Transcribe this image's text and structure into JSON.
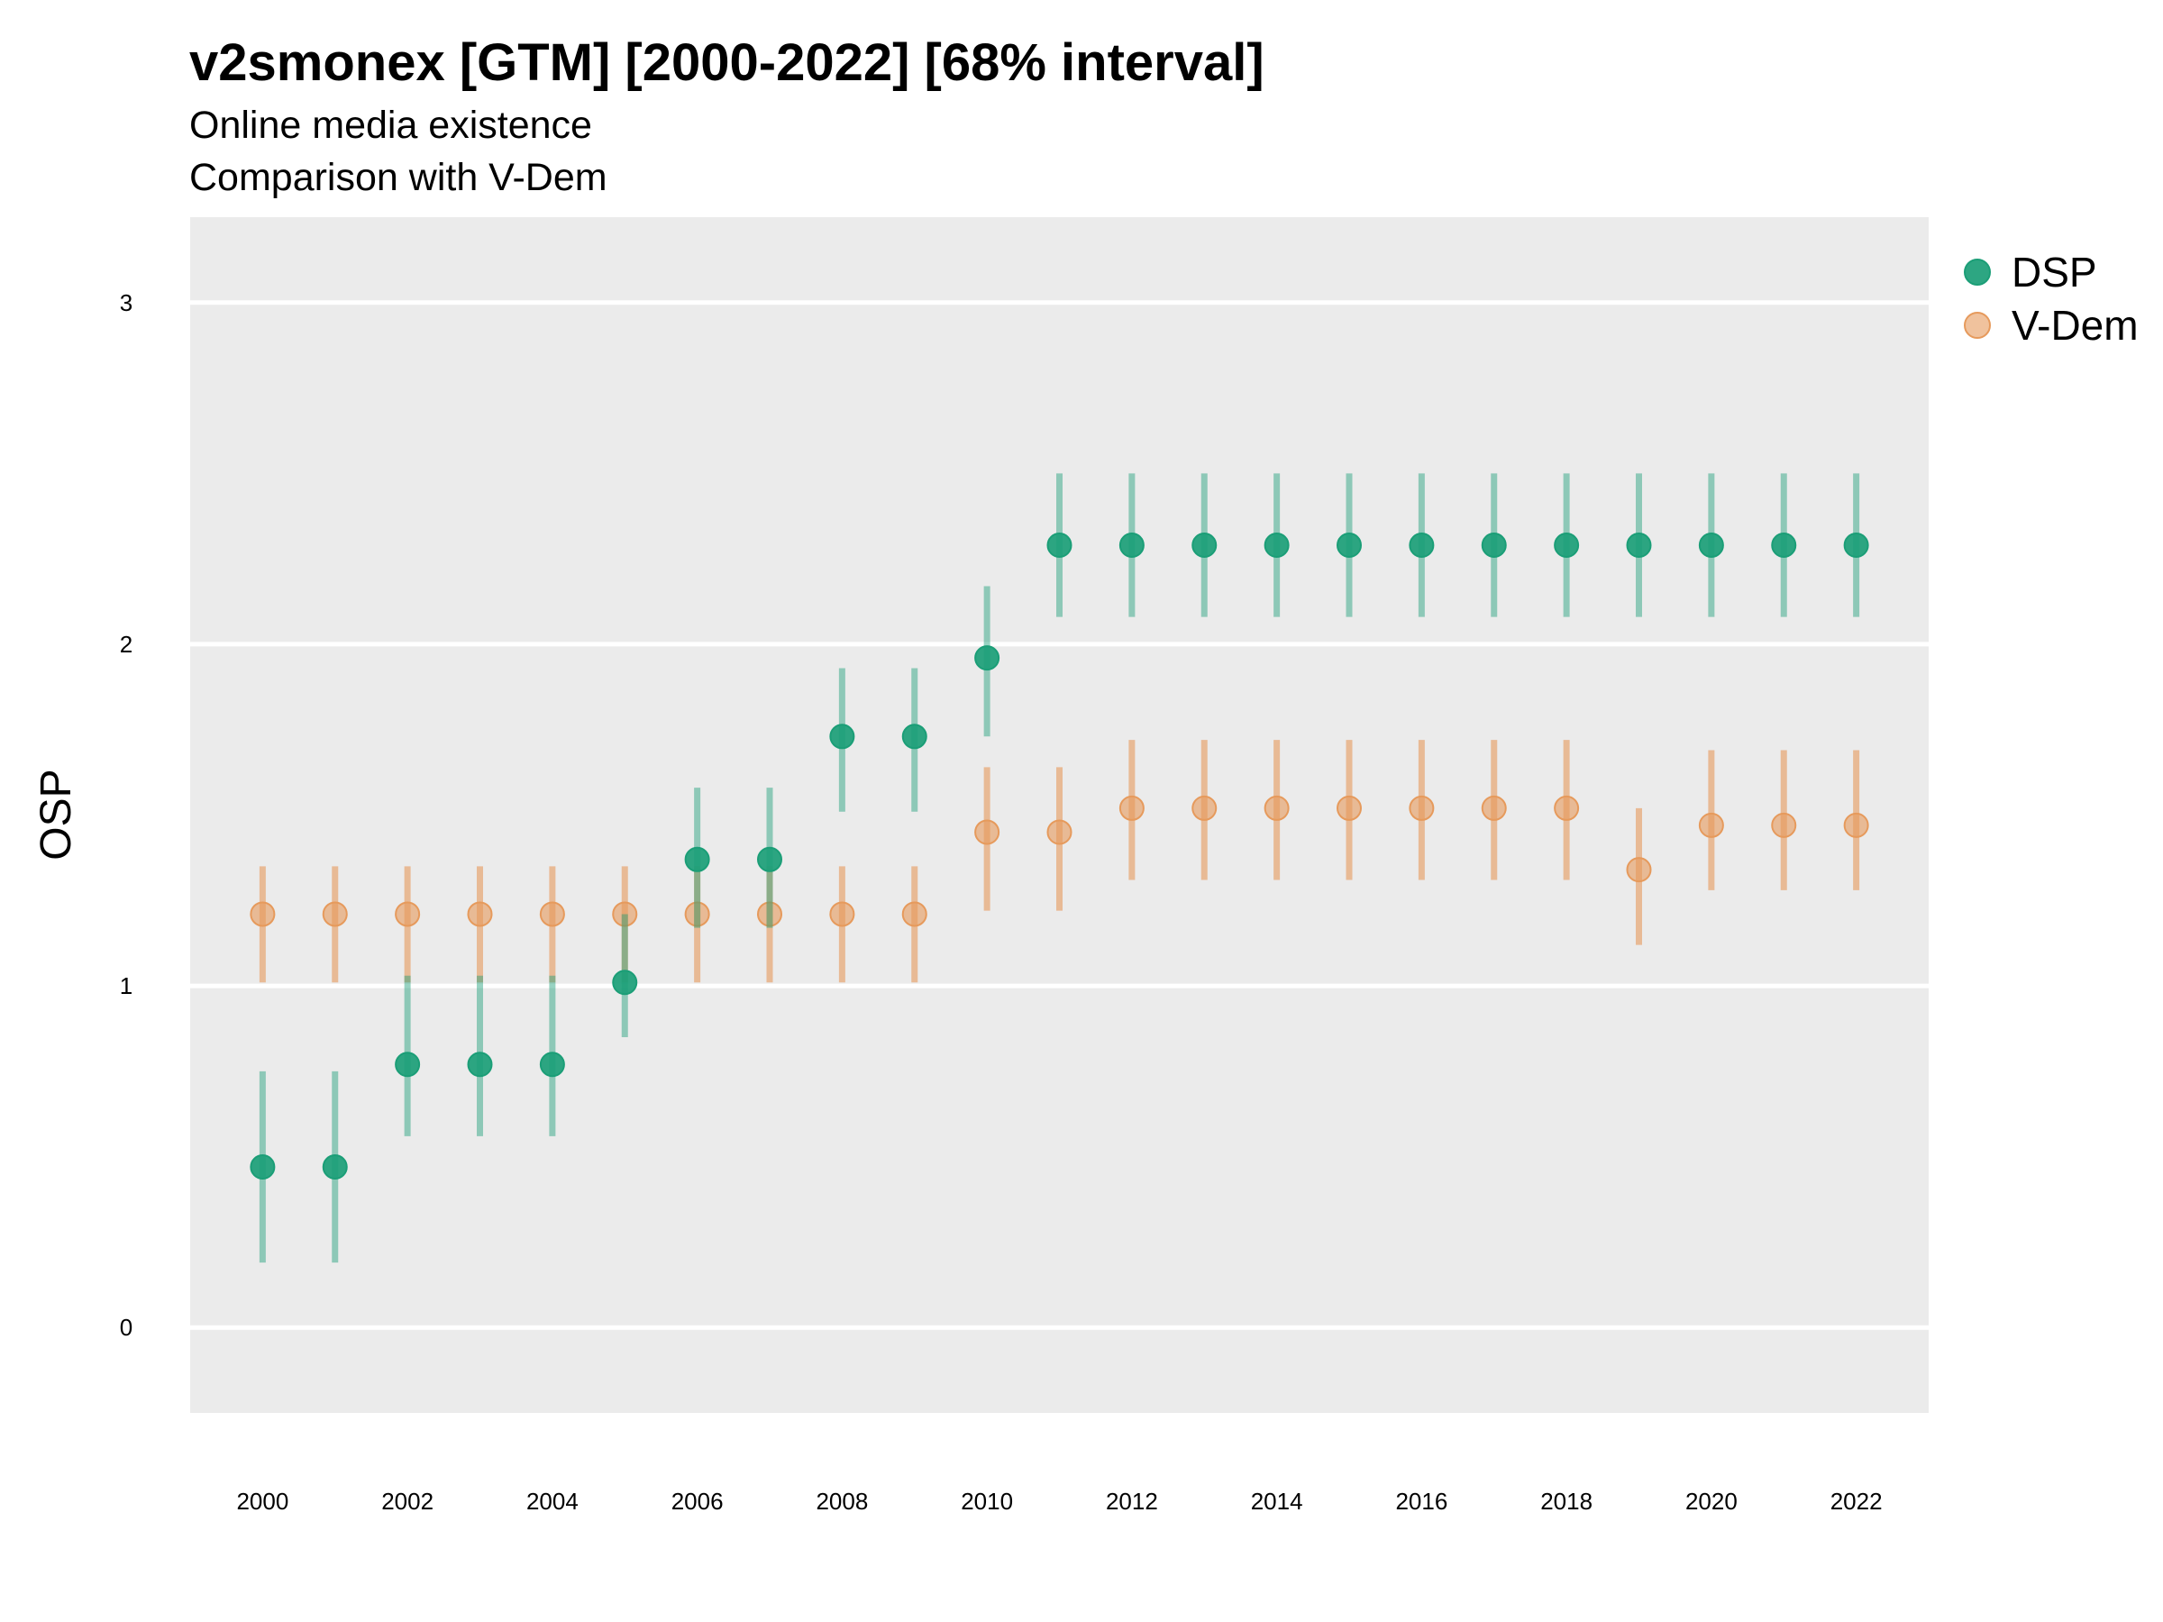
{
  "title": "v2smonex [GTM] [2000-2022] [68% interval]",
  "subtitle": "Online media existence",
  "caption": "Comparison with V-Dem",
  "chart_data": {
    "type": "scatter",
    "ylabel": "OSP",
    "xlabel": "",
    "ylim": [
      -0.25,
      3.25
    ],
    "xlim": [
      1999.0,
      2023.0
    ],
    "x_ticks": [
      2000,
      2002,
      2004,
      2006,
      2008,
      2010,
      2012,
      2014,
      2016,
      2018,
      2020,
      2022
    ],
    "y_ticks": [
      0,
      1,
      2,
      3
    ],
    "grid": true,
    "legend_position": "right",
    "x": [
      2000,
      2001,
      2002,
      2003,
      2004,
      2005,
      2006,
      2007,
      2008,
      2009,
      2010,
      2011,
      2012,
      2013,
      2014,
      2015,
      2016,
      2017,
      2018,
      2019,
      2020,
      2021,
      2022
    ],
    "series": [
      {
        "name": "DSP",
        "color": "#1b9e77",
        "values": [
          0.47,
          0.47,
          0.77,
          0.77,
          0.77,
          1.01,
          1.37,
          1.37,
          1.73,
          1.73,
          1.96,
          2.29,
          2.29,
          2.29,
          2.29,
          2.29,
          2.29,
          2.29,
          2.29,
          2.29,
          2.29,
          2.29,
          2.29
        ],
        "lower": [
          0.19,
          0.19,
          0.56,
          0.56,
          0.56,
          0.85,
          1.17,
          1.17,
          1.51,
          1.51,
          1.73,
          2.08,
          2.08,
          2.08,
          2.08,
          2.08,
          2.08,
          2.08,
          2.08,
          2.08,
          2.08,
          2.08,
          2.08
        ],
        "upper": [
          0.75,
          0.75,
          1.03,
          1.03,
          1.03,
          1.21,
          1.58,
          1.58,
          1.93,
          1.93,
          2.17,
          2.5,
          2.5,
          2.5,
          2.5,
          2.5,
          2.5,
          2.5,
          2.5,
          2.5,
          2.5,
          2.5,
          2.5
        ]
      },
      {
        "name": "V-Dem",
        "color": "#e69a5c",
        "values": [
          1.21,
          1.21,
          1.21,
          1.21,
          1.21,
          1.21,
          1.21,
          1.21,
          1.21,
          1.21,
          1.45,
          1.45,
          1.52,
          1.52,
          1.52,
          1.52,
          1.52,
          1.52,
          1.52,
          1.34,
          1.47,
          1.47,
          1.47
        ],
        "lower": [
          1.01,
          1.01,
          1.01,
          1.01,
          1.01,
          1.01,
          1.01,
          1.01,
          1.01,
          1.01,
          1.22,
          1.22,
          1.31,
          1.31,
          1.31,
          1.31,
          1.31,
          1.31,
          1.31,
          1.12,
          1.28,
          1.28,
          1.28
        ],
        "upper": [
          1.35,
          1.35,
          1.35,
          1.35,
          1.35,
          1.35,
          1.35,
          1.35,
          1.35,
          1.35,
          1.64,
          1.64,
          1.72,
          1.72,
          1.72,
          1.72,
          1.72,
          1.72,
          1.72,
          1.52,
          1.69,
          1.69,
          1.69
        ]
      }
    ]
  }
}
